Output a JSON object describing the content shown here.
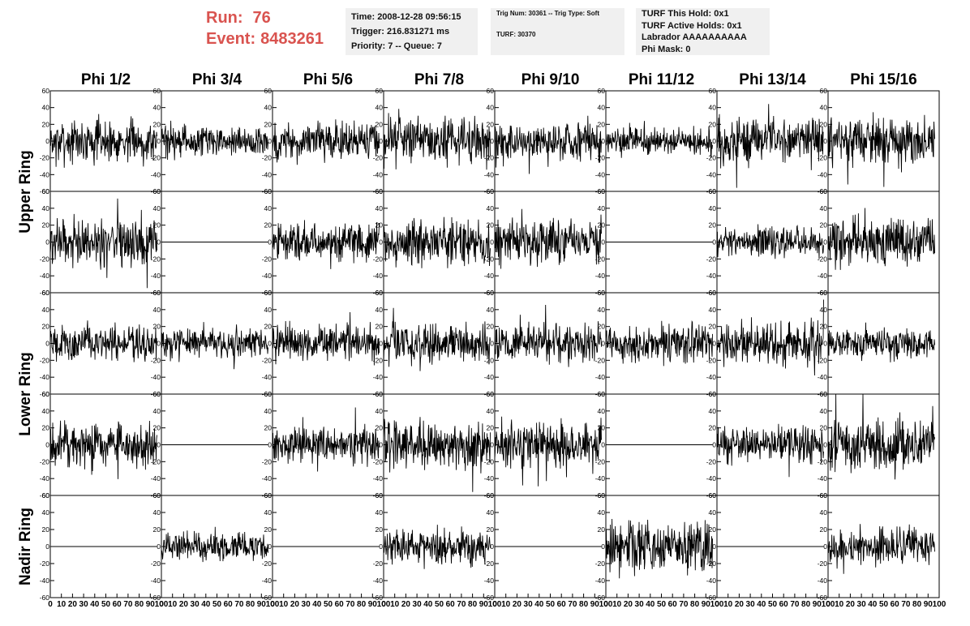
{
  "header": {
    "run_label": "Run:",
    "run_value": "76",
    "event_label": "Event:",
    "event_value": "8483261",
    "time_line": "Time: 2008-12-28 09:56:15",
    "trigger_line": "Trigger: 216.831271 ms",
    "priority_line": "Priority: 7 -- Queue: 7",
    "trig_num_line": "Trig Num: 30361 -- Trig Type: Soft",
    "turf_line": "TURF: 30370",
    "turf_hold_line": "TURF This Hold: 0x1",
    "turf_active_line": "TURF Active Holds: 0x1",
    "labrador_line": "Labrador AAAAAAAAAA",
    "phi_mask_line": "Phi Mask: 0",
    "accent_color": "#d9534f"
  },
  "chart_data": {
    "type": "line",
    "columns": [
      "Phi 1/2",
      "Phi 3/4",
      "Phi 5/6",
      "Phi 7/8",
      "Phi 9/10",
      "Phi 11/12",
      "Phi 13/14",
      "Phi 15/16"
    ],
    "row_groups": [
      {
        "label": "Upper Ring",
        "rows": [
          0,
          1
        ]
      },
      {
        "label": "Lower Ring",
        "rows": [
          2,
          3
        ]
      },
      {
        "label": "Nadir Ring",
        "rows": [
          4
        ]
      }
    ],
    "ylim": [
      -60,
      60
    ],
    "xlim": [
      0,
      100
    ],
    "y_ticks": [
      "60",
      "40",
      "20",
      "0",
      "-20",
      "-40",
      "-60"
    ],
    "x_ticks": [
      "0",
      "10",
      "20",
      "30",
      "40",
      "50",
      "60",
      "70",
      "80",
      "90",
      "100"
    ],
    "signal_x_end": 96,
    "line_color": "#000000",
    "panels": [
      {
        "row": 0,
        "channels": [
          {
            "state": "noise",
            "amplitude": 12
          },
          {
            "state": "noise",
            "amplitude": 9
          },
          {
            "state": "noise",
            "amplitude": 11
          },
          {
            "state": "noise",
            "amplitude": 13
          },
          {
            "state": "noise",
            "amplitude": 12
          },
          {
            "state": "noise",
            "amplitude": 8
          },
          {
            "state": "noise",
            "amplitude": 13
          },
          {
            "state": "noise",
            "amplitude": 14
          }
        ]
      },
      {
        "row": 1,
        "channels": [
          {
            "state": "noise",
            "amplitude": 14
          },
          {
            "state": "flat",
            "amplitude": 0
          },
          {
            "state": "noise",
            "amplitude": 11
          },
          {
            "state": "noise",
            "amplitude": 13
          },
          {
            "state": "noise",
            "amplitude": 12
          },
          {
            "state": "flat",
            "amplitude": 0
          },
          {
            "state": "noise",
            "amplitude": 9
          },
          {
            "state": "noise",
            "amplitude": 13
          }
        ]
      },
      {
        "row": 2,
        "channels": [
          {
            "state": "noise",
            "amplitude": 10
          },
          {
            "state": "noise",
            "amplitude": 9
          },
          {
            "state": "noise",
            "amplitude": 10
          },
          {
            "state": "noise",
            "amplitude": 12
          },
          {
            "state": "noise",
            "amplitude": 11
          },
          {
            "state": "noise",
            "amplitude": 11
          },
          {
            "state": "noise",
            "amplitude": 12
          },
          {
            "state": "noise",
            "amplitude": 9
          }
        ]
      },
      {
        "row": 3,
        "channels": [
          {
            "state": "noise",
            "amplitude": 13
          },
          {
            "state": "flat",
            "amplitude": 0
          },
          {
            "state": "noise",
            "amplitude": 10
          },
          {
            "state": "noise",
            "amplitude": 14
          },
          {
            "state": "noise",
            "amplitude": 13
          },
          {
            "state": "flat",
            "amplitude": 0
          },
          {
            "state": "noise",
            "amplitude": 10
          },
          {
            "state": "noise",
            "amplitude": 15
          }
        ]
      },
      {
        "row": 4,
        "channels": [
          {
            "state": "flat",
            "amplitude": 0
          },
          {
            "state": "noise",
            "amplitude": 8
          },
          {
            "state": "flat",
            "amplitude": 0
          },
          {
            "state": "noise",
            "amplitude": 11
          },
          {
            "state": "flat",
            "amplitude": 0
          },
          {
            "state": "noise",
            "amplitude": 15
          },
          {
            "state": "flat",
            "amplitude": 0
          },
          {
            "state": "noise",
            "amplitude": 10
          }
        ]
      }
    ]
  }
}
